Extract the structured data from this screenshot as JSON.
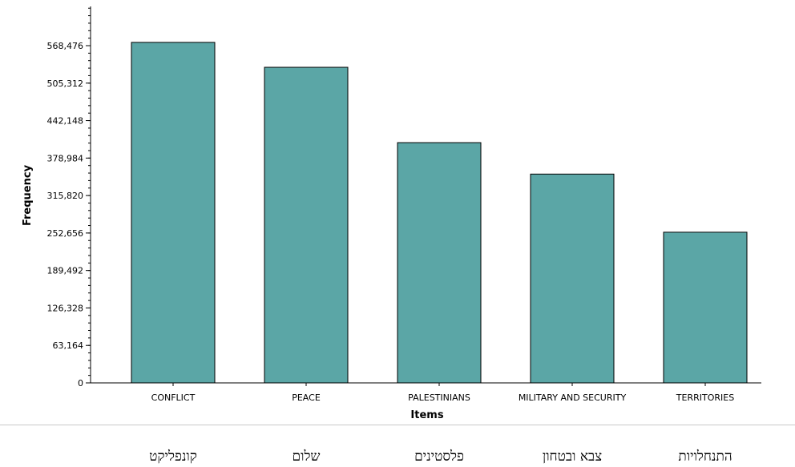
{
  "chart_data": {
    "type": "bar",
    "categories": [
      "CONFLICT",
      "PEACE",
      "PALESTINIANS",
      "MILITARY AND SECURITY",
      "TERRITORIES"
    ],
    "values": [
      574000,
      532000,
      405000,
      352000,
      254000
    ],
    "xlabel": "Items",
    "ylabel": "Frequency",
    "ylim": [
      0,
      568476
    ],
    "yticks": [
      "0",
      "63,164",
      "126,328",
      "189,492",
      "252,656",
      "315,820",
      "378,984",
      "442,148",
      "505,312",
      "568,476"
    ],
    "bar_color": "#5ba6a6",
    "grid": false
  },
  "hebrew_labels": [
    "קונפליקט",
    "שלום",
    "פלסטינים",
    "צבא ובטחון",
    "התנחלויות"
  ]
}
